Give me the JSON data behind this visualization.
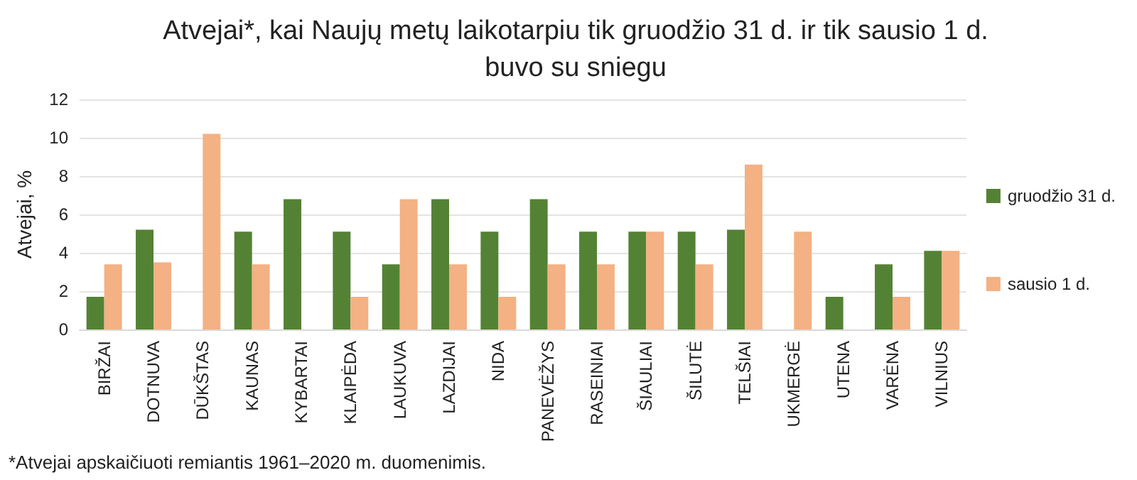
{
  "chart_data": {
    "type": "bar",
    "title": "Atvejai*, kai Naujų metų laikotarpiu tik gruodžio 31 d. ir tik sausio 1 d.\nbuvo su sniegu",
    "ylabel": "Atvejai, %",
    "categories": [
      "BIRŽAI",
      "DOTNUVA",
      "DŪKŠTAS",
      "KAUNAS",
      "KYBARTAI",
      "KLAIPĖDA",
      "LAUKUVA",
      "LAZDIJAI",
      "NIDA",
      "PANEVĖŽYS",
      "RASEINIAI",
      "ŠIAULIAI",
      "ŠILUTĖ",
      "TELŠIAI",
      "UKMERGĖ",
      "UTENA",
      "VARĖNA",
      "VILNIUS"
    ],
    "series": [
      {
        "name": "gruodžio 31 d.",
        "color": "#548235",
        "values": [
          1.7,
          5.2,
          null,
          5.1,
          6.8,
          5.1,
          3.4,
          6.8,
          5.1,
          6.8,
          5.1,
          5.1,
          5.1,
          5.2,
          null,
          1.7,
          3.4,
          4.1
        ]
      },
      {
        "name": "sausio 1 d.",
        "color": "#f4b183",
        "values": [
          3.4,
          3.5,
          10.2,
          3.4,
          null,
          1.7,
          6.8,
          3.4,
          1.7,
          3.4,
          3.4,
          5.1,
          3.4,
          8.6,
          5.1,
          null,
          1.7,
          4.1
        ]
      }
    ],
    "ylim": [
      0,
      12
    ],
    "yticks": [
      0,
      2,
      4,
      6,
      8,
      10,
      12
    ],
    "grid": "y",
    "legend": "right",
    "annotations": [
      "*Atvejai apskaičiuoti remiantis 1961–2020 m. duomenimis."
    ]
  }
}
